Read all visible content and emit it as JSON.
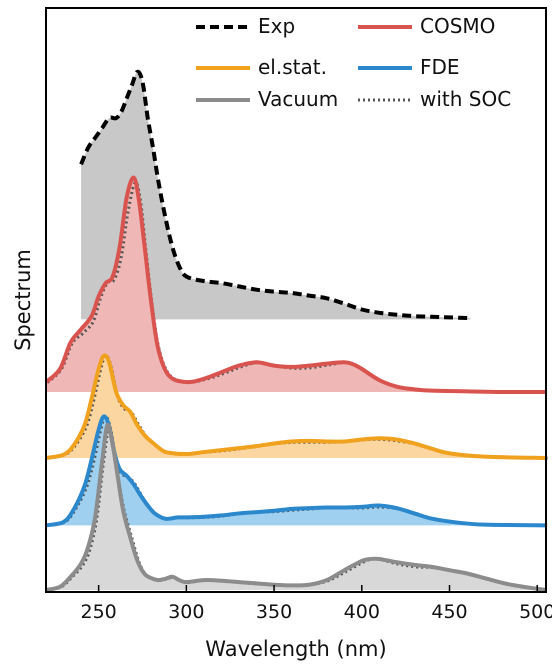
{
  "chart_data": {
    "type": "line",
    "xlabel": "Wavelength (nm)",
    "ylabel": "Spectrum",
    "xlim": [
      220,
      505
    ],
    "x_ticks": [
      250,
      300,
      350,
      400,
      450,
      500
    ],
    "y_ticks_shown": false,
    "grid": false,
    "legend_position": "top-right",
    "legend": [
      {
        "label": "Exp",
        "color": "#000000",
        "style": "dashed"
      },
      {
        "label": "COSMO",
        "color": "#d9534f",
        "style": "solid"
      },
      {
        "label": "el.stat.",
        "color": "#f0a11e",
        "style": "solid"
      },
      {
        "label": "FDE",
        "color": "#2b88cc",
        "style": "solid"
      },
      {
        "label": "Vacuum",
        "color": "#8c8c8c",
        "style": "solid"
      },
      {
        "label": "with SOC",
        "color": "#555555",
        "style": "dotted"
      }
    ],
    "offset_note": "Curves are vertically stacked with constant offsets; y in relative units (0 = each curve's baseline).",
    "series": [
      {
        "name": "Exp",
        "color": "#000000",
        "fill": "#c8c8c8",
        "dash": "9,5",
        "width": 4,
        "offset": 4.1,
        "fill_from_x": 240,
        "x": [
          240,
          244,
          248,
          252,
          256,
          260,
          263,
          266,
          269,
          272,
          275,
          278,
          281,
          284,
          288,
          292,
          296,
          300,
          310,
          320,
          330,
          340,
          350,
          360,
          370,
          380,
          390,
          400,
          410,
          420,
          430,
          440,
          450,
          462
        ],
        "y": [
          2.35,
          2.6,
          2.75,
          2.9,
          3.05,
          3.05,
          3.15,
          3.35,
          3.55,
          3.75,
          3.6,
          3.05,
          2.6,
          2.1,
          1.55,
          1.1,
          0.8,
          0.65,
          0.58,
          0.55,
          0.5,
          0.45,
          0.42,
          0.4,
          0.36,
          0.32,
          0.24,
          0.15,
          0.1,
          0.07,
          0.05,
          0.04,
          0.03,
          0.02
        ]
      },
      {
        "name": "COSMO",
        "color": "#d9534f",
        "fill": "#efb7b5",
        "width": 4,
        "offset": 3.0,
        "x": [
          220,
          228,
          234,
          240,
          246,
          250,
          254,
          258,
          262,
          266,
          270,
          273,
          276,
          280,
          284,
          290,
          300,
          310,
          320,
          330,
          340,
          350,
          360,
          370,
          380,
          390,
          395,
          400,
          410,
          420,
          430,
          440,
          460,
          480,
          505
        ],
        "y": [
          0.15,
          0.35,
          0.75,
          0.95,
          1.15,
          1.45,
          1.65,
          1.75,
          2.2,
          2.95,
          3.25,
          2.9,
          2.25,
          1.35,
          0.65,
          0.25,
          0.15,
          0.2,
          0.3,
          0.4,
          0.45,
          0.4,
          0.38,
          0.4,
          0.43,
          0.45,
          0.42,
          0.35,
          0.18,
          0.08,
          0.04,
          0.02,
          0.01,
          0.0,
          0.0
        ]
      },
      {
        "name": "el.stat.",
        "color": "#f0a11e",
        "fill": "#fbd6a0",
        "width": 4,
        "offset": 2.0,
        "x": [
          220,
          230,
          236,
          242,
          246,
          250,
          253,
          256,
          260,
          264,
          268,
          272,
          276,
          280,
          286,
          290,
          300,
          310,
          320,
          330,
          340,
          350,
          360,
          370,
          380,
          390,
          400,
          410,
          420,
          430,
          440,
          450,
          470,
          505
        ],
        "y": [
          0.0,
          0.05,
          0.2,
          0.5,
          0.9,
          1.35,
          1.55,
          1.45,
          1.0,
          0.8,
          0.7,
          0.5,
          0.35,
          0.25,
          0.12,
          0.08,
          0.06,
          0.09,
          0.12,
          0.15,
          0.18,
          0.22,
          0.25,
          0.26,
          0.25,
          0.25,
          0.28,
          0.3,
          0.28,
          0.22,
          0.14,
          0.07,
          0.02,
          0.0
        ]
      },
      {
        "name": "FDE",
        "color": "#2b88cc",
        "fill": "#9fd0ef",
        "width": 4,
        "offset": 0.98,
        "x": [
          220,
          230,
          236,
          242,
          246,
          250,
          253,
          256,
          259,
          262,
          266,
          270,
          274,
          278,
          282,
          288,
          295,
          300,
          310,
          320,
          330,
          340,
          350,
          360,
          370,
          380,
          390,
          400,
          410,
          420,
          430,
          440,
          455,
          470,
          505
        ],
        "y": [
          0.0,
          0.05,
          0.25,
          0.6,
          1.0,
          1.45,
          1.65,
          1.5,
          1.1,
          0.85,
          0.75,
          0.62,
          0.45,
          0.3,
          0.18,
          0.1,
          0.12,
          0.12,
          0.13,
          0.15,
          0.18,
          0.2,
          0.22,
          0.25,
          0.26,
          0.27,
          0.27,
          0.28,
          0.3,
          0.26,
          0.18,
          0.1,
          0.04,
          0.01,
          0.0
        ]
      },
      {
        "name": "Vacuum",
        "color": "#8c8c8c",
        "fill": "#d8d8d8",
        "width": 4,
        "offset": 0.0,
        "x": [
          220,
          228,
          234,
          240,
          244,
          248,
          252,
          255,
          258,
          261,
          264,
          268,
          272,
          276,
          280,
          284,
          288,
          292,
          296,
          300,
          310,
          320,
          330,
          340,
          350,
          360,
          370,
          380,
          390,
          400,
          405,
          410,
          420,
          430,
          440,
          450,
          460,
          470,
          485,
          505
        ],
        "y": [
          0.0,
          0.05,
          0.2,
          0.4,
          0.65,
          1.1,
          1.95,
          2.5,
          2.2,
          1.7,
          1.2,
          0.8,
          0.45,
          0.25,
          0.18,
          0.15,
          0.17,
          0.2,
          0.15,
          0.12,
          0.15,
          0.14,
          0.12,
          0.1,
          0.08,
          0.07,
          0.08,
          0.15,
          0.3,
          0.44,
          0.47,
          0.47,
          0.42,
          0.38,
          0.35,
          0.3,
          0.25,
          0.18,
          0.08,
          0.0
        ]
      }
    ]
  }
}
